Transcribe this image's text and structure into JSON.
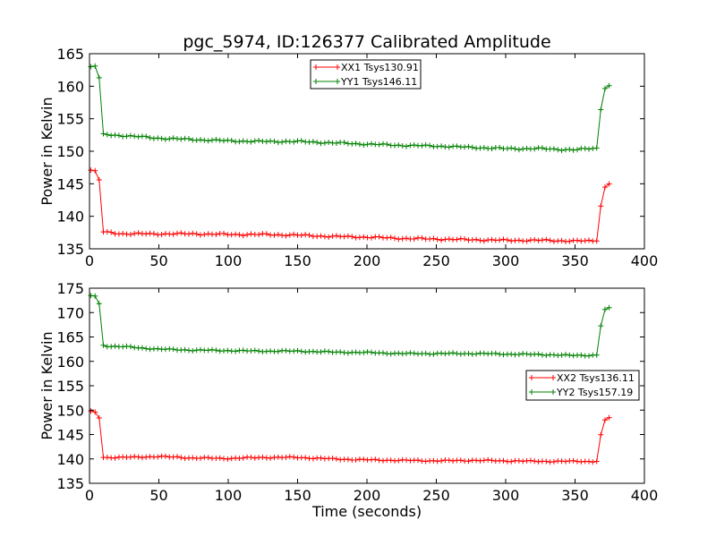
{
  "chart_data": [
    {
      "type": "line",
      "title": "pgc_5974, ID:126377 Calibrated Amplitude",
      "xlabel": "",
      "ylabel": "Power in Kelvin",
      "xlim": [
        0,
        400
      ],
      "ylim": [
        135,
        165
      ],
      "xticks": [
        "0",
        "50",
        "100",
        "150",
        "200",
        "250",
        "300",
        "350",
        "400"
      ],
      "yticks": [
        "135",
        "140",
        "145",
        "150",
        "155",
        "160",
        "165"
      ],
      "grid": false,
      "legend_position": "upper-center",
      "x": [
        1,
        4,
        7,
        10,
        14,
        25,
        50,
        75,
        100,
        125,
        150,
        175,
        200,
        225,
        250,
        275,
        300,
        325,
        350,
        366,
        369,
        372,
        375
      ],
      "series": [
        {
          "name": "XX1 Tsys130.91",
          "color": "#ff0000",
          "values": [
            147.1,
            147.0,
            145.6,
            137.6,
            137.5,
            137.3,
            137.3,
            137.3,
            137.2,
            137.2,
            137.1,
            136.9,
            136.8,
            136.6,
            136.5,
            136.4,
            136.3,
            136.3,
            136.2,
            136.2,
            142.4,
            144.8,
            145.0
          ]
        },
        {
          "name": "YY1 Tsys146.11",
          "color": "#008000",
          "values": [
            163.0,
            163.1,
            161.3,
            152.7,
            152.5,
            152.4,
            152.0,
            151.8,
            151.6,
            151.5,
            151.5,
            151.3,
            151.1,
            150.9,
            150.8,
            150.6,
            150.4,
            150.4,
            150.2,
            150.5,
            157.3,
            160.0,
            160.1
          ]
        }
      ]
    },
    {
      "type": "line",
      "title": "",
      "xlabel": "Time (seconds)",
      "ylabel": "Power in Kelvin",
      "xlim": [
        0,
        400
      ],
      "ylim": [
        135,
        175
      ],
      "xticks": [
        "0",
        "50",
        "100",
        "150",
        "200",
        "250",
        "300",
        "350",
        "400"
      ],
      "yticks": [
        "135",
        "140",
        "145",
        "150",
        "155",
        "160",
        "165",
        "170",
        "175"
      ],
      "grid": false,
      "legend_position": "center-right",
      "x": [
        1,
        4,
        7,
        10,
        14,
        25,
        50,
        75,
        100,
        125,
        150,
        175,
        200,
        225,
        250,
        275,
        300,
        325,
        350,
        366,
        369,
        372,
        375
      ],
      "series": [
        {
          "name": "XX2 Tsys136.11",
          "color": "#ff0000",
          "values": [
            149.8,
            149.6,
            148.4,
            140.3,
            140.3,
            140.3,
            140.5,
            140.2,
            140.1,
            140.3,
            140.3,
            140.0,
            139.8,
            139.7,
            139.6,
            139.7,
            139.6,
            139.5,
            139.5,
            139.5,
            145.8,
            148.3,
            148.5
          ]
        },
        {
          "name": "YY2 Tsys157.19",
          "color": "#008000",
          "values": [
            173.5,
            173.4,
            171.8,
            163.3,
            163.1,
            163.0,
            162.5,
            162.3,
            162.2,
            162.1,
            162.1,
            161.9,
            161.8,
            161.6,
            161.6,
            161.6,
            161.5,
            161.4,
            161.2,
            161.3,
            168.2,
            171.0,
            171.0
          ]
        }
      ]
    }
  ]
}
